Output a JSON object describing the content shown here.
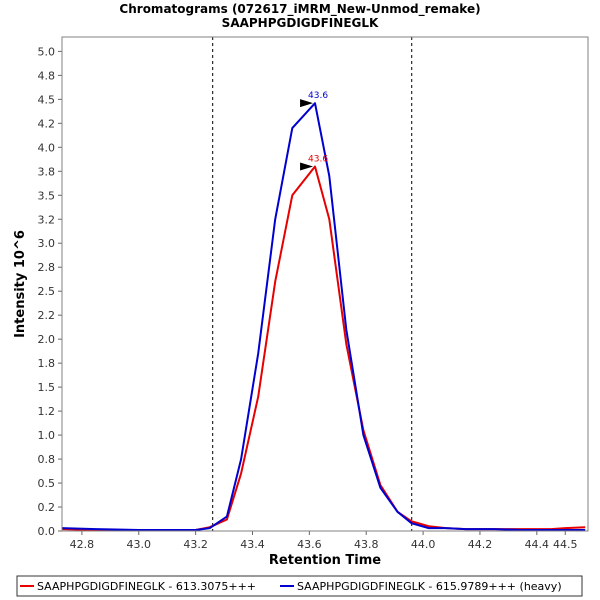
{
  "chart_data": {
    "type": "line",
    "title": "Chromatograms (072617_iMRM_New-Unmod_remake)",
    "subtitle": "SAAPHPGDIGDFINEGLK",
    "xlabel": "Retention Time",
    "ylabel": "Intensity 10^6",
    "xlim": [
      42.73,
      44.58
    ],
    "ylim": [
      0,
      5.15
    ],
    "x_ticks": [
      "42.8",
      "43.0",
      "43.2",
      "43.4",
      "43.6",
      "43.8",
      "44.0",
      "44.2",
      "44.4"
    ],
    "x_tick_values": [
      42.8,
      43.0,
      43.2,
      43.4,
      43.6,
      43.8,
      44.0,
      44.2,
      44.4
    ],
    "x_ticks_extra": "44.5",
    "y_ticks": [
      "0.0",
      "0.2",
      "0.5",
      "0.8",
      "1.0",
      "1.2",
      "1.5",
      "1.8",
      "2.0",
      "2.2",
      "2.5",
      "2.8",
      "3.0",
      "3.2",
      "3.5",
      "3.8",
      "4.0",
      "4.2",
      "4.5",
      "4.8",
      "5.0"
    ],
    "y_tick_values": [
      0.0,
      0.25,
      0.5,
      0.75,
      1.0,
      1.25,
      1.5,
      1.75,
      2.0,
      2.25,
      2.5,
      2.75,
      3.0,
      3.25,
      3.5,
      3.75,
      4.0,
      4.25,
      4.5,
      4.75,
      5.0
    ],
    "boundaries": [
      43.26,
      43.96
    ],
    "series": [
      {
        "name": "SAAPHPGDIGDFINEGLK - 613.3075+++",
        "color": "#e60000",
        "peak_label": "43.6",
        "peak_rt": 43.62,
        "peak_value": 3.8,
        "points": [
          [
            42.73,
            0.02
          ],
          [
            42.85,
            0.01
          ],
          [
            43.0,
            0.01
          ],
          [
            43.1,
            0.01
          ],
          [
            43.2,
            0.01
          ],
          [
            43.25,
            0.04
          ],
          [
            43.31,
            0.12
          ],
          [
            43.36,
            0.6
          ],
          [
            43.42,
            1.4
          ],
          [
            43.48,
            2.6
          ],
          [
            43.54,
            3.5
          ],
          [
            43.62,
            3.8
          ],
          [
            43.67,
            3.25
          ],
          [
            43.73,
            1.95
          ],
          [
            43.79,
            1.05
          ],
          [
            43.85,
            0.48
          ],
          [
            43.91,
            0.2
          ],
          [
            43.96,
            0.1
          ],
          [
            44.02,
            0.05
          ],
          [
            44.08,
            0.03
          ],
          [
            44.15,
            0.02
          ],
          [
            44.25,
            0.02
          ],
          [
            44.35,
            0.02
          ],
          [
            44.45,
            0.02
          ],
          [
            44.5,
            0.03
          ],
          [
            44.57,
            0.04
          ]
        ]
      },
      {
        "name": "SAAPHPGDIGDFINEGLK - 615.9789+++ (heavy)",
        "color": "#0000d0",
        "peak_label": "43.6",
        "peak_rt": 43.62,
        "peak_value": 4.46,
        "points": [
          [
            42.73,
            0.03
          ],
          [
            42.85,
            0.02
          ],
          [
            43.0,
            0.01
          ],
          [
            43.1,
            0.01
          ],
          [
            43.2,
            0.01
          ],
          [
            43.25,
            0.03
          ],
          [
            43.31,
            0.15
          ],
          [
            43.36,
            0.75
          ],
          [
            43.42,
            1.85
          ],
          [
            43.48,
            3.25
          ],
          [
            43.54,
            4.2
          ],
          [
            43.62,
            4.46
          ],
          [
            43.67,
            3.7
          ],
          [
            43.73,
            2.1
          ],
          [
            43.79,
            1.0
          ],
          [
            43.85,
            0.45
          ],
          [
            43.91,
            0.2
          ],
          [
            43.96,
            0.08
          ],
          [
            44.02,
            0.03
          ],
          [
            44.08,
            0.03
          ],
          [
            44.15,
            0.02
          ],
          [
            44.25,
            0.02
          ],
          [
            44.35,
            0.01
          ],
          [
            44.45,
            0.01
          ],
          [
            44.5,
            0.01
          ],
          [
            44.57,
            0.01
          ]
        ]
      }
    ],
    "legend": [
      "SAAPHPGDIGDFINEGLK - 613.3075+++",
      "SAAPHPGDIGDFINEGLK - 615.9789+++ (heavy)"
    ]
  }
}
